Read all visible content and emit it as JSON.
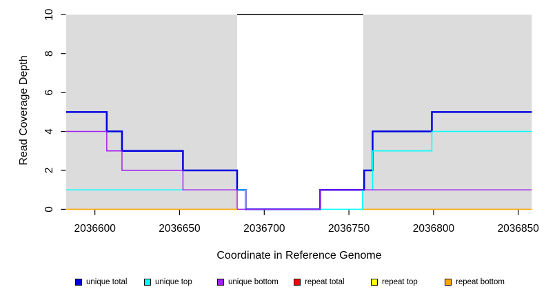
{
  "chart_data": {
    "type": "line",
    "subtype": "step-coverage",
    "title": "",
    "xlabel": "Coordinate in Reference Genome",
    "ylabel": "Read Coverage Depth",
    "xlim": [
      2036583,
      2036858
    ],
    "ylim": [
      0,
      10
    ],
    "x_ticks": [
      2036600,
      2036650,
      2036700,
      2036750,
      2036800,
      2036850
    ],
    "y_ticks": [
      0,
      2,
      4,
      6,
      8,
      10
    ],
    "grid": false,
    "unique_region_shading_color": "#DCDCDC",
    "unique_regions": [
      [
        2036583,
        2036684
      ],
      [
        2036758.5,
        2036858
      ]
    ],
    "repeat_region": {
      "start": 2036684,
      "end": 2036758.5,
      "marker_depth": 10,
      "marker_color": "#000000"
    },
    "series": [
      {
        "name": "unique total",
        "color": "#0000E0",
        "line_width": 2.5,
        "segments": [
          [
            [
              2036583,
              5
            ],
            [
              2036607,
              5
            ],
            [
              2036607,
              4
            ],
            [
              2036616,
              4
            ],
            [
              2036616,
              3
            ],
            [
              2036652,
              3
            ],
            [
              2036652,
              2
            ],
            [
              2036684,
              2
            ],
            [
              2036684,
              1
            ],
            [
              2036689,
              1
            ],
            [
              2036689,
              0
            ],
            [
              2036733,
              0
            ],
            [
              2036733,
              1
            ],
            [
              2036759,
              1
            ],
            [
              2036759,
              2
            ],
            [
              2036764,
              2
            ],
            [
              2036764,
              4
            ],
            [
              2036799,
              4
            ],
            [
              2036799,
              5
            ],
            [
              2036858,
              5
            ]
          ]
        ]
      },
      {
        "name": "unique top",
        "color": "#00FFFF",
        "line_width": 1.5,
        "segments": [
          [
            [
              2036583,
              1
            ],
            [
              2036689,
              1
            ],
            [
              2036689,
              0
            ],
            [
              2036758,
              0
            ],
            [
              2036758,
              1
            ],
            [
              2036764,
              1
            ],
            [
              2036764,
              3
            ],
            [
              2036799,
              3
            ],
            [
              2036799,
              4
            ],
            [
              2036858,
              4
            ]
          ]
        ]
      },
      {
        "name": "unique bottom",
        "color": "#A020F0",
        "line_width": 1.5,
        "segments": [
          [
            [
              2036583,
              4
            ],
            [
              2036607,
              4
            ],
            [
              2036607,
              3
            ],
            [
              2036616,
              3
            ],
            [
              2036616,
              2
            ],
            [
              2036652,
              2
            ],
            [
              2036652,
              1
            ],
            [
              2036684,
              1
            ],
            [
              2036684,
              0
            ],
            [
              2036733,
              0
            ],
            [
              2036733,
              1
            ],
            [
              2036858,
              1
            ]
          ]
        ]
      },
      {
        "name": "repeat total",
        "color": "#FF0000",
        "line_width": 1.5,
        "segments": []
      },
      {
        "name": "repeat top",
        "color": "#FFFF00",
        "line_width": 1.5,
        "segments": []
      },
      {
        "name": "repeat bottom",
        "color": "#FFA500",
        "line_width": 1.5,
        "segments": [
          [
            [
              2036583,
              0
            ],
            [
              2036684,
              0
            ]
          ],
          [
            [
              2036758.5,
              0
            ],
            [
              2036858,
              0
            ]
          ]
        ]
      }
    ]
  },
  "legend": {
    "items": [
      {
        "label": "unique total",
        "color": "#0000E0"
      },
      {
        "label": "unique top",
        "color": "#00FFFF"
      },
      {
        "label": "unique bottom",
        "color": "#A020F0"
      },
      {
        "label": "repeat total",
        "color": "#FF0000"
      },
      {
        "label": "repeat top",
        "color": "#FFFF00"
      },
      {
        "label": "repeat bottom",
        "color": "#FFA500"
      }
    ]
  }
}
